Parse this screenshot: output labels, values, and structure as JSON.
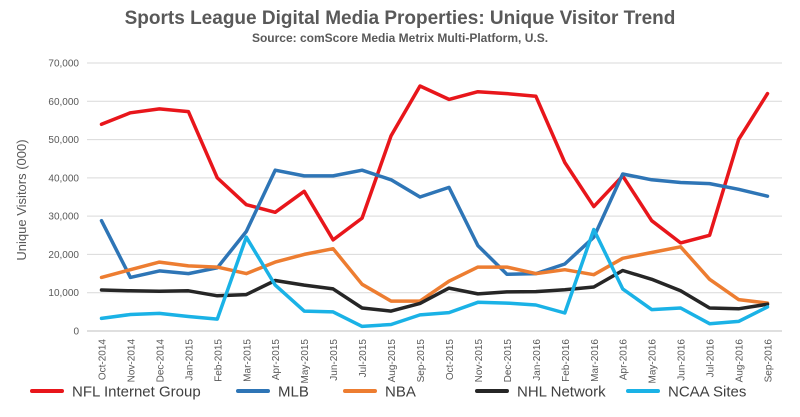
{
  "chart_data": {
    "type": "line",
    "title": "Sports League Digital Media Properties: Unique Visitor Trend",
    "subtitle": "Source: comScore Media Metrix Multi-Platform, U.S.",
    "xlabel": "",
    "ylabel": "Unique Visitors (000)",
    "ylim": [
      0,
      70000
    ],
    "yticks": [
      "0",
      "10,000",
      "20,000",
      "30,000",
      "40,000",
      "50,000",
      "60,000",
      "70,000"
    ],
    "ytick_values": [
      0,
      10000,
      20000,
      30000,
      40000,
      50000,
      60000,
      70000
    ],
    "grid": true,
    "legend_position": "bottom",
    "categories": [
      "Oct-2014",
      "Nov-2014",
      "Dec-2014",
      "Jan-2015",
      "Feb-2015",
      "Mar-2015",
      "Apr-2015",
      "May-2015",
      "Jun-2015",
      "Jul-2015",
      "Aug-2015",
      "Sep-2015",
      "Oct-2015",
      "Nov-2015",
      "Dec-2015",
      "Jan-2016",
      "Feb-2016",
      "Mar-2016",
      "Apr-2016",
      "May-2016",
      "Jun-2016",
      "Jul-2016",
      "Aug-2016",
      "Sep-2016"
    ],
    "series": [
      {
        "name": "NFL Internet Group",
        "color": "#e8161b",
        "values": [
          54000,
          57000,
          58000,
          57300,
          40000,
          33000,
          31000,
          36500,
          23800,
          29500,
          51000,
          64000,
          60500,
          62500,
          62000,
          61300,
          44000,
          32500,
          40500,
          28800,
          23000,
          25000,
          50000,
          62000
        ]
      },
      {
        "name": "MLB",
        "color": "#2e75b6",
        "values": [
          28800,
          14000,
          15700,
          15000,
          16500,
          26000,
          42000,
          40500,
          40500,
          42000,
          39500,
          35000,
          37500,
          22300,
          14800,
          15000,
          17500,
          24500,
          41000,
          39500,
          38800,
          38500,
          37000,
          35200
        ]
      },
      {
        "name": "NBA",
        "color": "#ed7d31",
        "values": [
          14000,
          16000,
          18000,
          17000,
          16700,
          15000,
          18000,
          20000,
          21500,
          12200,
          7800,
          7800,
          13000,
          16700,
          16700,
          15000,
          16000,
          14700,
          19000,
          20500,
          22000,
          13500,
          8200,
          7300
        ]
      },
      {
        "name": "NHL Network",
        "color": "#262626",
        "values": [
          10700,
          10500,
          10400,
          10500,
          9200,
          9500,
          13200,
          12000,
          11000,
          6000,
          5200,
          7200,
          11200,
          9700,
          10200,
          10300,
          10800,
          11500,
          15800,
          13500,
          10500,
          6000,
          5800,
          7000
        ]
      },
      {
        "name": "NCAA Sites",
        "color": "#1ab2e6",
        "values": [
          3300,
          4300,
          4600,
          3800,
          3100,
          24500,
          12000,
          5200,
          5000,
          1200,
          1700,
          4200,
          4800,
          7500,
          7300,
          6800,
          4700,
          26500,
          11000,
          5600,
          6000,
          1900,
          2500,
          6300
        ]
      }
    ]
  }
}
